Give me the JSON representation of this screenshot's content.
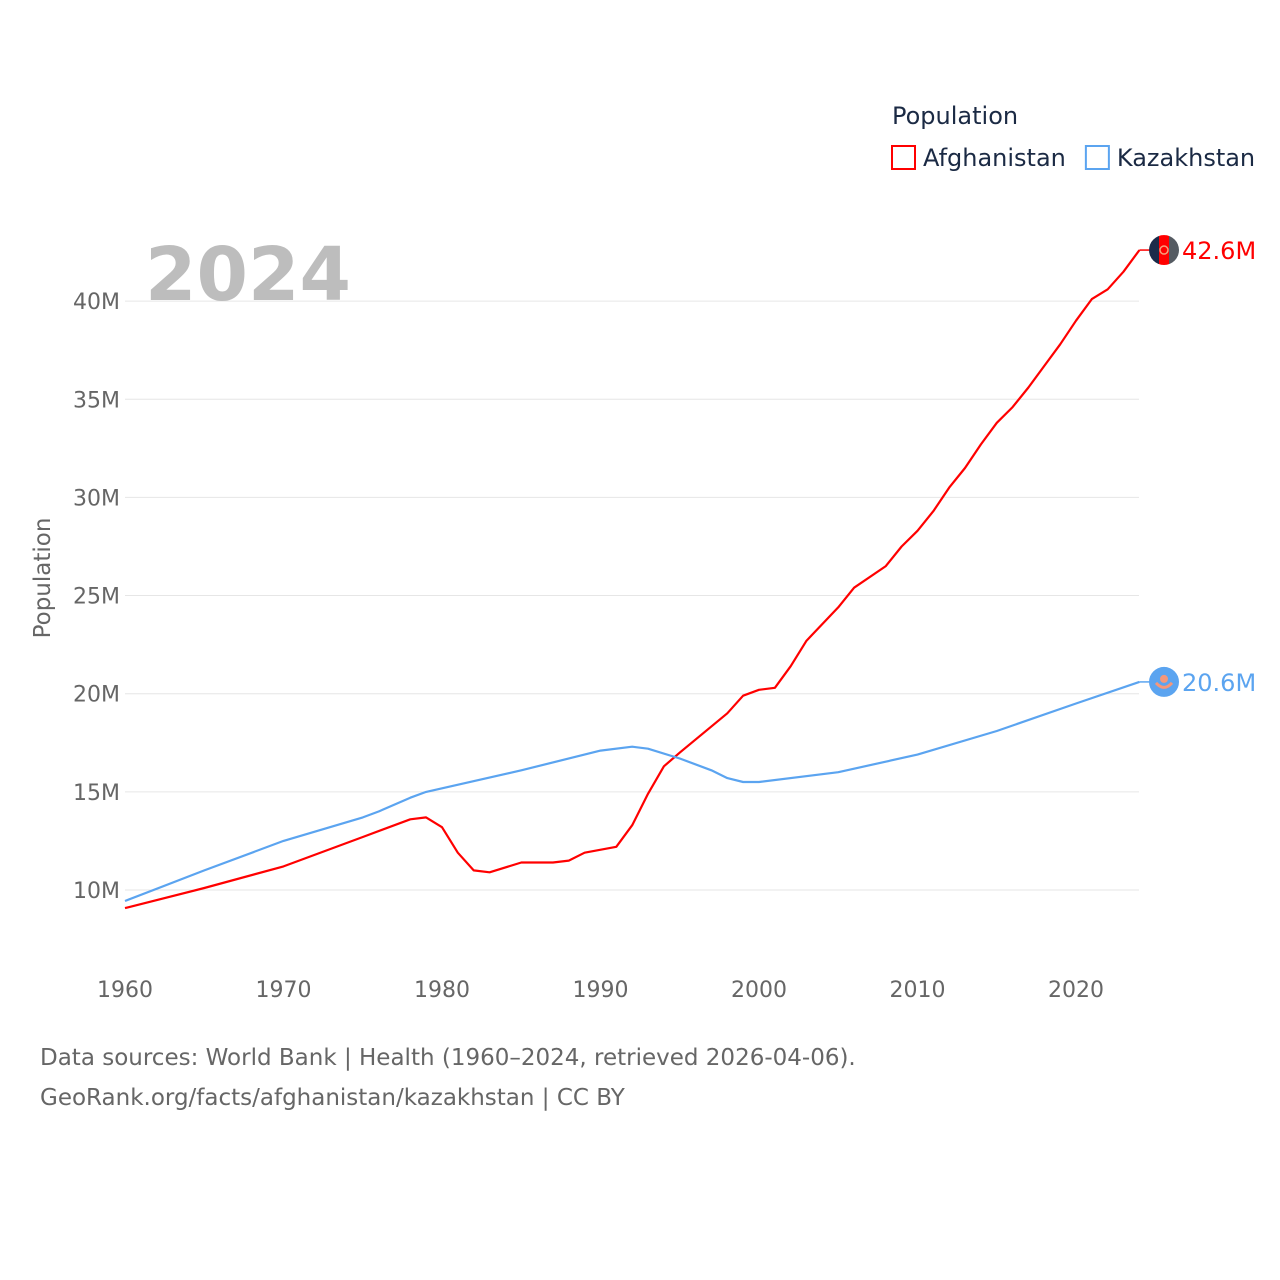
{
  "chart_data": {
    "type": "line",
    "title": "Population",
    "year_label": "2024",
    "ylabel": "Population",
    "xlabel": "",
    "xlim": [
      1960,
      2024
    ],
    "ylim": [
      8,
      44
    ],
    "x_ticks": [
      1960,
      1970,
      1980,
      1990,
      2000,
      2010,
      2020
    ],
    "x_tick_labels": [
      "1960",
      "1970",
      "1980",
      "1990",
      "2000",
      "2010",
      "2020"
    ],
    "y_ticks": [
      10,
      15,
      20,
      25,
      30,
      35,
      40
    ],
    "y_tick_labels": [
      "10M",
      "15M",
      "20M",
      "25M",
      "30M",
      "35M",
      "40M"
    ],
    "y_unit": "millions",
    "grid": true,
    "legend_position": "top-right",
    "series": [
      {
        "name": "Afghanistan",
        "color": "#ff0000",
        "end_label": "42.6M",
        "flag_icon": "afghanistan-flag-icon",
        "points": [
          [
            1960,
            9.08
          ],
          [
            1965,
            10.1
          ],
          [
            1970,
            11.2
          ],
          [
            1975,
            12.7
          ],
          [
            1978,
            13.6
          ],
          [
            1979,
            13.7
          ],
          [
            1980,
            13.2
          ],
          [
            1981,
            11.9
          ],
          [
            1982,
            11.0
          ],
          [
            1983,
            10.9
          ],
          [
            1985,
            11.4
          ],
          [
            1987,
            11.4
          ],
          [
            1988,
            11.5
          ],
          [
            1989,
            11.9
          ],
          [
            1991,
            12.2
          ],
          [
            1992,
            13.3
          ],
          [
            1993,
            14.9
          ],
          [
            1994,
            16.3
          ],
          [
            1995,
            17.0
          ],
          [
            1998,
            19.0
          ],
          [
            1999,
            19.9
          ],
          [
            2000,
            20.2
          ],
          [
            2001,
            20.3
          ],
          [
            2002,
            21.4
          ],
          [
            2003,
            22.7
          ],
          [
            2005,
            24.4
          ],
          [
            2006,
            25.4
          ],
          [
            2008,
            26.5
          ],
          [
            2009,
            27.5
          ],
          [
            2010,
            28.3
          ],
          [
            2011,
            29.3
          ],
          [
            2012,
            30.5
          ],
          [
            2013,
            31.5
          ],
          [
            2014,
            32.7
          ],
          [
            2015,
            33.8
          ],
          [
            2016,
            34.6
          ],
          [
            2017,
            35.6
          ],
          [
            2018,
            36.7
          ],
          [
            2019,
            37.8
          ],
          [
            2020,
            39.0
          ],
          [
            2021,
            40.1
          ],
          [
            2022,
            40.6
          ],
          [
            2023,
            41.5
          ],
          [
            2024,
            42.6
          ]
        ]
      },
      {
        "name": "Kazakhstan",
        "color": "#5ba4f0",
        "end_label": "20.6M",
        "flag_icon": "kazakhstan-flag-icon",
        "points": [
          [
            1960,
            9.44
          ],
          [
            1965,
            11.0
          ],
          [
            1970,
            12.5
          ],
          [
            1975,
            13.7
          ],
          [
            1976,
            14.0
          ],
          [
            1978,
            14.7
          ],
          [
            1979,
            15.0
          ],
          [
            1985,
            16.1
          ],
          [
            1990,
            17.1
          ],
          [
            1992,
            17.3
          ],
          [
            1993,
            17.2
          ],
          [
            1995,
            16.7
          ],
          [
            1997,
            16.1
          ],
          [
            1998,
            15.7
          ],
          [
            1999,
            15.5
          ],
          [
            2000,
            15.5
          ],
          [
            2005,
            16.0
          ],
          [
            2010,
            16.9
          ],
          [
            2015,
            18.1
          ],
          [
            2020,
            19.5
          ],
          [
            2024,
            20.6
          ]
        ]
      }
    ]
  },
  "footer": {
    "line1": "Data sources: World Bank | Health (1960–2024, retrieved 2026-04-06).",
    "line2": "GeoRank.org/facts/afghanistan/kazakhstan | CC BY"
  }
}
